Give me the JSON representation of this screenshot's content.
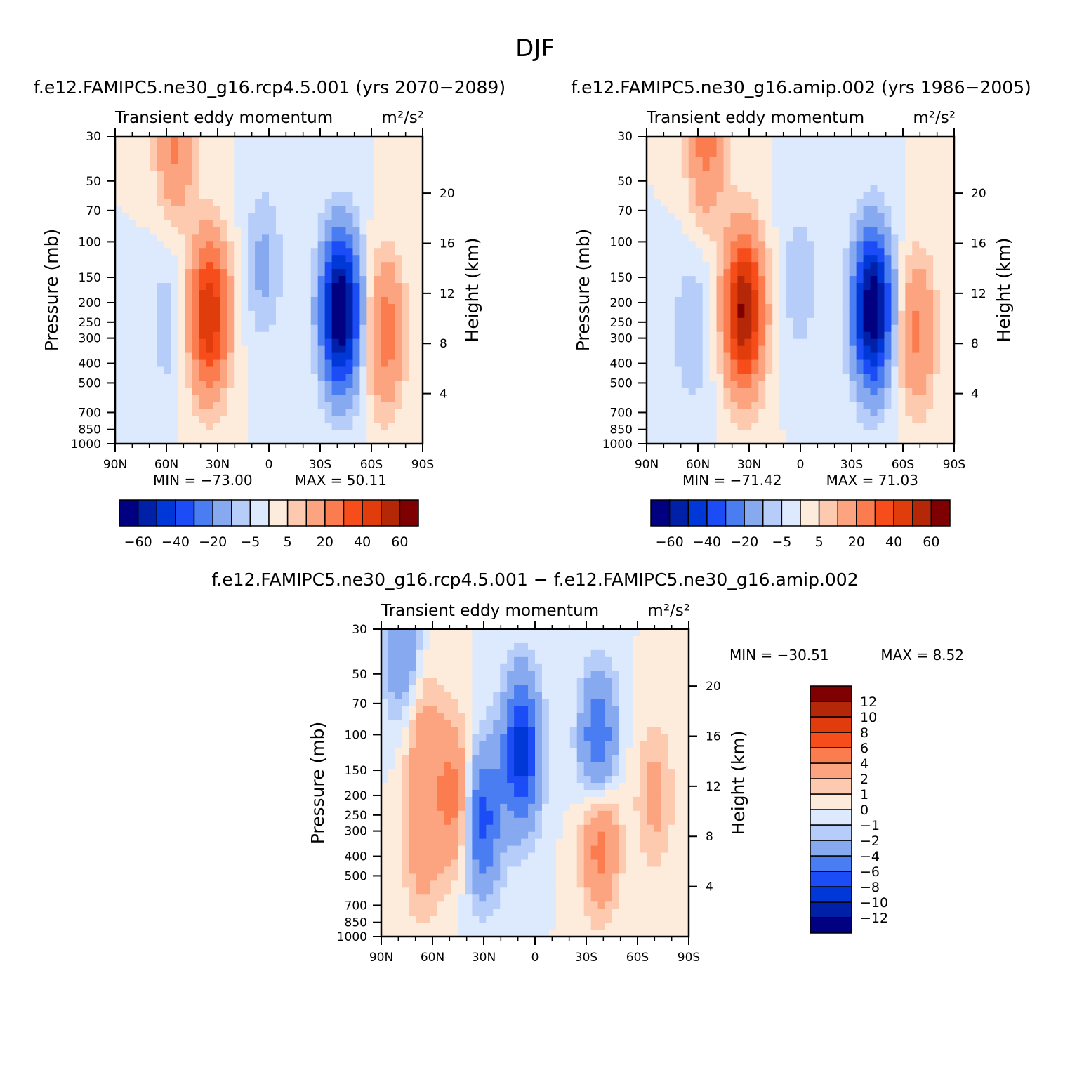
{
  "figure_title": "DJF",
  "chart_data": [
    {
      "type": "heatmap",
      "title": "f.e12.FAMIPC5.ne30_g16.rcp4.5.001 (yrs 2070-2089)",
      "variable": "Transient eddy momentum",
      "units": "m²/s²",
      "xlabel": "",
      "ylabel": "Pressure (mb)",
      "ylabel_right": "Height (km)",
      "x_ticks": [
        "90N",
        "60N",
        "30N",
        "0",
        "30S",
        "60S",
        "90S"
      ],
      "y_ticks": [
        30,
        50,
        70,
        100,
        150,
        200,
        250,
        300,
        400,
        500,
        700,
        850,
        1000
      ],
      "y_right_ticks": [
        20,
        16,
        12,
        8,
        4
      ],
      "y_scale": "log",
      "x_range": [
        90,
        -90
      ],
      "y_range": [
        30,
        1000
      ],
      "min_label": "MIN = -73.00",
      "max_label": "MAX = 50.11",
      "min": -73.0,
      "max": 50.11,
      "colorbar": {
        "orientation": "horizontal",
        "levels": [
          -60,
          -50,
          -40,
          -30,
          -20,
          -10,
          -5,
          0,
          5,
          10,
          20,
          30,
          40,
          50,
          60
        ],
        "tick_labels": [
          "-60",
          "-40",
          "-20",
          "-5",
          "5",
          "20",
          "40",
          "60"
        ],
        "colors": [
          "#000080",
          "#0020a8",
          "#0038d8",
          "#1c4cf5",
          "#4a7cf2",
          "#86a9f0",
          "#b6cdfa",
          "#ddeafd",
          "#fdebdc",
          "#fdcab0",
          "#fca380",
          "#fb7c4e",
          "#f64d1a",
          "#e03c0c",
          "#b42808",
          "#7f0000"
        ]
      },
      "features": [
        {
          "lat": 35,
          "p": 230,
          "value": 50,
          "desc": "NH subtropical positive maximum"
        },
        {
          "lat": -42,
          "p": 220,
          "value": -73,
          "desc": "SH midlatitude negative minimum"
        },
        {
          "lat": -68,
          "p": 280,
          "value": 25
        },
        {
          "lat": 60,
          "p": 250,
          "value": -8
        },
        {
          "lat": 3,
          "p": 130,
          "value": -12
        },
        {
          "lat": 55,
          "p": 32,
          "value": 22
        }
      ]
    },
    {
      "type": "heatmap",
      "title": "f.e12.FAMIPC5.ne30_g16.amip.002 (yrs 1986-2005)",
      "variable": "Transient eddy momentum",
      "units": "m²/s²",
      "xlabel": "",
      "ylabel": "Pressure (mb)",
      "ylabel_right": "Height (km)",
      "x_ticks": [
        "90N",
        "60N",
        "30N",
        "0",
        "30S",
        "60S",
        "90S"
      ],
      "y_ticks": [
        30,
        50,
        70,
        100,
        150,
        200,
        250,
        300,
        400,
        500,
        700,
        850,
        1000
      ],
      "y_right_ticks": [
        20,
        16,
        12,
        8,
        4
      ],
      "y_scale": "log",
      "x_range": [
        90,
        -90
      ],
      "y_range": [
        30,
        1000
      ],
      "min_label": "MIN = -71.42",
      "max_label": "MAX = 71.03",
      "min": -71.42,
      "max": 71.03,
      "colorbar": {
        "orientation": "horizontal",
        "levels": [
          -60,
          -50,
          -40,
          -30,
          -20,
          -10,
          -5,
          0,
          5,
          10,
          20,
          30,
          40,
          50,
          60
        ],
        "tick_labels": [
          "-60",
          "-40",
          "-20",
          "-5",
          "5",
          "20",
          "40",
          "60"
        ],
        "colors": [
          "#000080",
          "#0020a8",
          "#0038d8",
          "#1c4cf5",
          "#4a7cf2",
          "#86a9f0",
          "#b6cdfa",
          "#ddeafd",
          "#fdebdc",
          "#fdcab0",
          "#fca380",
          "#fb7c4e",
          "#f64d1a",
          "#e03c0c",
          "#b42808",
          "#7f0000"
        ]
      },
      "features": [
        {
          "lat": 33,
          "p": 220,
          "value": 62,
          "desc": "NH subtropical positive maximum"
        },
        {
          "lat": -42,
          "p": 215,
          "value": -71,
          "desc": "SH midlatitude negative minimum"
        },
        {
          "lat": -68,
          "p": 280,
          "value": 22
        },
        {
          "lat": 64,
          "p": 280,
          "value": -10
        },
        {
          "lat": 0,
          "p": 155,
          "value": -9
        },
        {
          "lat": 55,
          "p": 32,
          "value": 24
        }
      ]
    },
    {
      "type": "heatmap",
      "title": "f.e12.FAMIPC5.ne30_g16.rcp4.5.001 - f.e12.FAMIPC5.ne30_g16.amip.002",
      "variable": "Transient eddy momentum",
      "units": "m²/s²",
      "xlabel": "",
      "ylabel": "Pressure (mb)",
      "ylabel_right": "Height (km)",
      "x_ticks": [
        "90N",
        "60N",
        "30N",
        "0",
        "30S",
        "60S",
        "90S"
      ],
      "y_ticks": [
        30,
        50,
        70,
        100,
        150,
        200,
        250,
        300,
        400,
        500,
        700,
        850,
        1000
      ],
      "y_right_ticks": [
        20,
        16,
        12,
        8,
        4
      ],
      "y_scale": "log",
      "x_range": [
        90,
        -90
      ],
      "y_range": [
        30,
        1000
      ],
      "min_label": "MIN = -30.51",
      "max_label": "MAX = 8.52",
      "min": -30.51,
      "max": 8.52,
      "colorbar": {
        "orientation": "vertical",
        "levels": [
          -12,
          -10,
          -8,
          -6,
          -4,
          -2,
          -1,
          0,
          1,
          2,
          4,
          6,
          8,
          10,
          12
        ],
        "tick_labels": [
          "-12",
          "-10",
          "-8",
          "-6",
          "-4",
          "-2",
          "-1",
          "0",
          "1",
          "2",
          "4",
          "6",
          "8",
          "10",
          "12"
        ],
        "colors": [
          "#000080",
          "#0020a8",
          "#0038d8",
          "#1c4cf5",
          "#4a7cf2",
          "#86a9f0",
          "#b6cdfa",
          "#ddeafd",
          "#fdebdc",
          "#fdcab0",
          "#fca380",
          "#fb7c4e",
          "#f64d1a",
          "#e03c0c",
          "#b42808",
          "#7f0000"
        ]
      },
      "features": [
        {
          "lat": 8,
          "p": 120,
          "value": -9,
          "desc": "equatorial upper-level negative"
        },
        {
          "lat": 31,
          "p": 260,
          "value": -7
        },
        {
          "lat": -37,
          "p": 120,
          "value": -7
        },
        {
          "lat": 77,
          "p": 40,
          "value": -4
        },
        {
          "lat": -38,
          "p": 300,
          "value": 6,
          "desc": "SH midlatitude positive"
        },
        {
          "lat": 47,
          "p": 200,
          "value": 5
        },
        {
          "lat": 66,
          "p": 350,
          "value": 3
        },
        {
          "lat": -70,
          "p": 200,
          "value": 2.5
        },
        {
          "lat": 66,
          "p": 100,
          "value": 3
        }
      ]
    }
  ]
}
